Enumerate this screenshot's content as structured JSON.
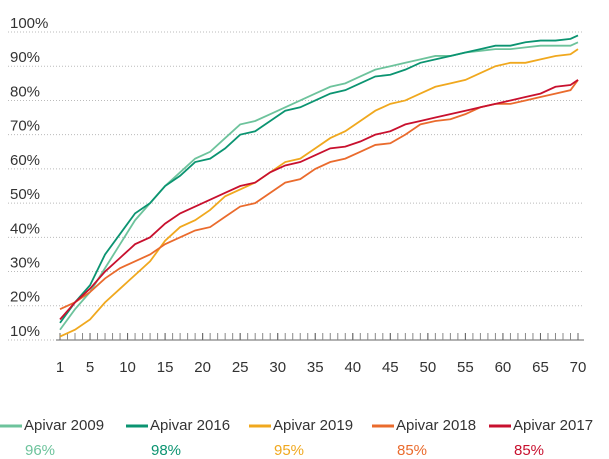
{
  "chart_data": {
    "type": "line",
    "x": [
      1,
      3,
      5,
      7,
      9,
      11,
      13,
      15,
      17,
      19,
      21,
      23,
      25,
      27,
      29,
      31,
      33,
      35,
      37,
      39,
      41,
      43,
      45,
      47,
      49,
      51,
      53,
      55,
      57,
      59,
      61,
      63,
      65,
      67,
      69,
      70
    ],
    "series": [
      {
        "name": "Apivar 2009",
        "color": "#6dc39c",
        "legend_label": "96%",
        "values": [
          13,
          19,
          24,
          31,
          38,
          45,
          50,
          55,
          59,
          63,
          65,
          69,
          73,
          74,
          76,
          78,
          80,
          82,
          84,
          85,
          87,
          89,
          90,
          91,
          92,
          93,
          93,
          94,
          94.5,
          95,
          95,
          95.5,
          96,
          96,
          96,
          97
        ]
      },
      {
        "name": "Apivar 2016",
        "color": "#0b9471",
        "legend_label": "98%",
        "values": [
          15,
          21,
          26,
          35,
          41,
          47,
          50,
          55,
          58,
          62,
          63,
          66,
          70,
          71,
          74,
          77,
          78,
          80,
          82,
          83,
          85,
          87,
          87.5,
          89,
          91,
          92,
          93,
          94,
          95,
          96,
          96,
          97,
          97.5,
          97.5,
          98,
          99
        ]
      },
      {
        "name": "Apivar 2019",
        "color": "#f0a81e",
        "legend_label": "95%",
        "values": [
          11,
          13,
          16,
          21,
          25,
          29,
          33,
          39,
          43,
          45,
          48,
          52,
          54,
          56,
          59,
          62,
          63,
          66,
          69,
          71,
          74,
          77,
          79,
          80,
          82,
          84,
          85,
          86,
          88,
          90,
          91,
          91,
          92,
          93,
          93.5,
          95
        ]
      },
      {
        "name": "Apivar 2018",
        "color": "#ea6b2d",
        "legend_label": "85%",
        "values": [
          19,
          21,
          24,
          28,
          31,
          33,
          35,
          38,
          40,
          42,
          43,
          46,
          49,
          50,
          53,
          56,
          57,
          60,
          62,
          63,
          65,
          67,
          67.5,
          70,
          73,
          74,
          74.5,
          76,
          78,
          79,
          79,
          80,
          81,
          82,
          83,
          86
        ]
      },
      {
        "name": "Apivar 2017",
        "color": "#c8102e",
        "legend_label": "85%",
        "values": [
          16,
          21,
          25,
          30,
          34,
          38,
          40,
          44,
          47,
          49,
          51,
          53,
          55,
          56,
          59,
          61,
          62,
          64,
          66,
          66.5,
          68,
          70,
          71,
          73,
          74,
          75,
          76,
          77,
          78,
          79,
          80,
          81,
          82,
          84,
          84.5,
          86
        ]
      }
    ],
    "xlim": [
      1,
      70
    ],
    "xticks": [
      1,
      5,
      10,
      15,
      20,
      25,
      30,
      35,
      40,
      45,
      50,
      55,
      60,
      65,
      70
    ],
    "ylim": [
      10,
      100
    ],
    "yticks": [
      {
        "value": 10,
        "label": "10%"
      },
      {
        "value": 20,
        "label": "20%"
      },
      {
        "value": 30,
        "label": "30%"
      },
      {
        "value": 40,
        "label": "40%"
      },
      {
        "value": 50,
        "label": "50%"
      },
      {
        "value": 60,
        "label": "60%"
      },
      {
        "value": 70,
        "label": "70%"
      },
      {
        "value": 80,
        "label": "80%"
      },
      {
        "value": 90,
        "label": "90%"
      },
      {
        "value": 100,
        "label": "100%"
      }
    ],
    "grid": true
  }
}
